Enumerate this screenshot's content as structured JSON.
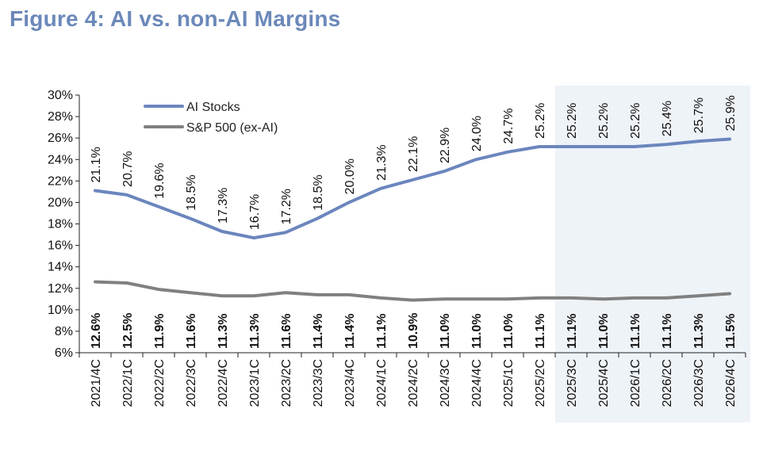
{
  "chart_data": {
    "type": "line",
    "title": "Figure 4: AI vs. non-AI Margins",
    "xlabel": "",
    "ylabel": "",
    "ylim": [
      6,
      30
    ],
    "yticks": [
      "6%",
      "8%",
      "10%",
      "12%",
      "14%",
      "16%",
      "18%",
      "20%",
      "22%",
      "24%",
      "26%",
      "28%",
      "30%"
    ],
    "categories": [
      "2021/4C",
      "2022/1C",
      "2022/2C",
      "2022/3C",
      "2022/4C",
      "2023/1C",
      "2023/2C",
      "2023/3C",
      "2023/4C",
      "2024/1C",
      "2024/2C",
      "2024/3C",
      "2024/4C",
      "2025/1C",
      "2025/2C",
      "2025/3C",
      "2025/4C",
      "2026/1C",
      "2026/2C",
      "2026/3C",
      "2026/4C"
    ],
    "forecast_start": "2025/3C",
    "series": [
      {
        "name": "AI Stocks",
        "color": "#6b86bd",
        "values": [
          21.1,
          20.7,
          19.6,
          18.5,
          17.3,
          16.7,
          17.2,
          18.5,
          20.0,
          21.3,
          22.1,
          22.9,
          24.0,
          24.7,
          25.2,
          25.2,
          25.2,
          25.2,
          25.4,
          25.7,
          25.9
        ],
        "labels": [
          "21.1%",
          "20.7%",
          "19.6%",
          "18.5%",
          "17.3%",
          "16.7%",
          "17.2%",
          "18.5%",
          "20.0%",
          "21.3%",
          "22.1%",
          "22.9%",
          "24.0%",
          "24.7%",
          "25.2%",
          "25.2%",
          "25.2%",
          "25.2%",
          "25.4%",
          "25.7%",
          "25.9%"
        ]
      },
      {
        "name": "S&P 500 (ex-AI)",
        "color": "#808080",
        "values": [
          12.6,
          12.5,
          11.9,
          11.6,
          11.3,
          11.3,
          11.6,
          11.4,
          11.4,
          11.1,
          10.9,
          11.0,
          11.0,
          11.0,
          11.1,
          11.1,
          11.0,
          11.1,
          11.1,
          11.3,
          11.5
        ],
        "labels": [
          "12.6%",
          "12.5%",
          "11.9%",
          "11.6%",
          "11.3%",
          "11.3%",
          "11.6%",
          "11.4%",
          "11.4%",
          "11.1%",
          "10.9%",
          "11.0%",
          "11.0%",
          "11.0%",
          "11.1%",
          "11.1%",
          "11.0%",
          "11.1%",
          "11.1%",
          "11.3%",
          "11.5%"
        ]
      }
    ],
    "colors": {
      "title": "#6b88b9",
      "forecast_shade": "#eef3f8"
    }
  }
}
